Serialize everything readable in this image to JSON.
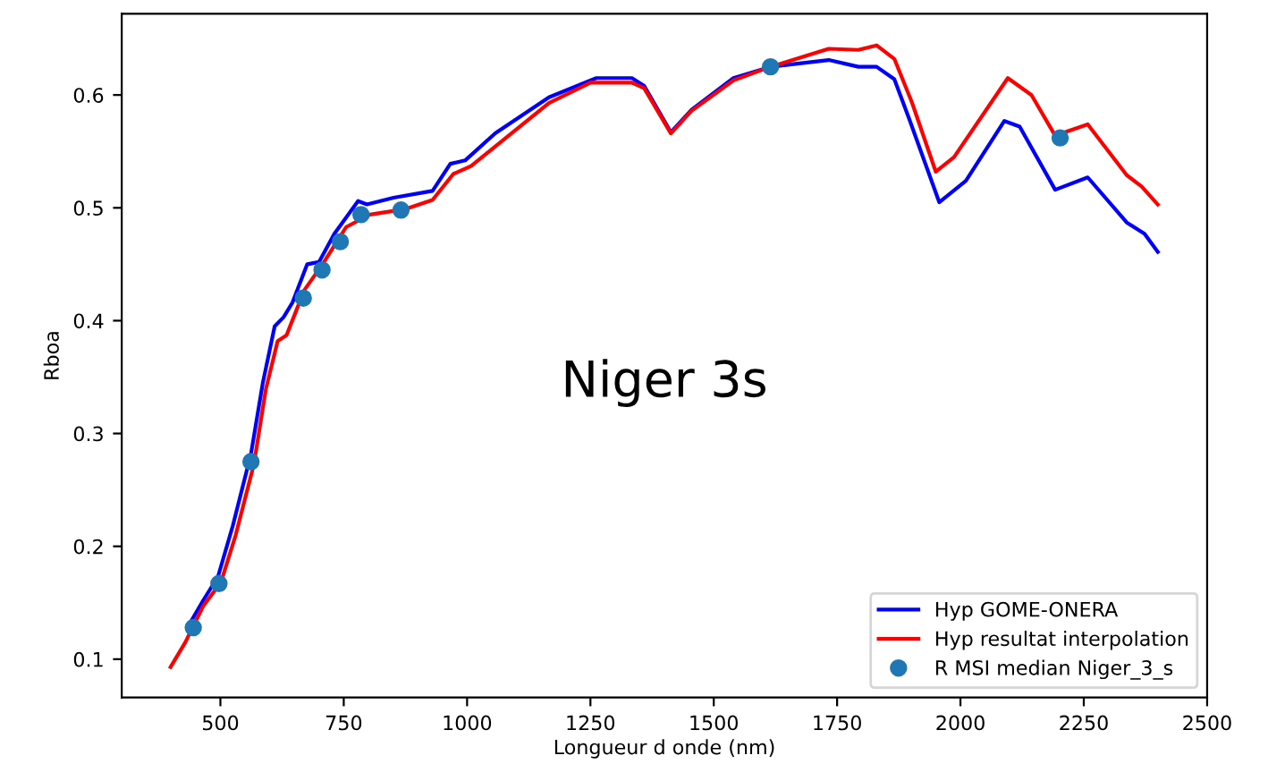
{
  "chart_data": {
    "type": "line",
    "xlabel": "Longueur d onde (nm)",
    "ylabel": "Rboa",
    "xlim": [
      300,
      2500
    ],
    "xticks": [
      500,
      750,
      1000,
      1250,
      1500,
      1750,
      2000,
      2250,
      2500
    ],
    "ylim": [
      0.066,
      0.672
    ],
    "yticks": [
      0.1,
      0.2,
      0.3,
      0.4,
      0.5,
      0.6
    ],
    "grid": false,
    "legend": "bottom right",
    "annotations": [
      "Niger 3s"
    ],
    "series": [
      {
        "name": "Hyp GOME-ONERA",
        "color": "#0000ff",
        "x": [
          441,
          465,
          495,
          525,
          562,
          586,
          610,
          628,
          646,
          676,
          700,
          731,
          779,
          797,
          851,
          930,
          966,
          996,
          1057,
          1166,
          1262,
          1334,
          1359,
          1413,
          1455,
          1540,
          1615,
          1733,
          1793,
          1830,
          1866,
          1896,
          1957,
          2011,
          2089,
          2120,
          2192,
          2258,
          2337,
          2373,
          2400
        ],
        "values": [
          0.134,
          0.152,
          0.173,
          0.218,
          0.282,
          0.345,
          0.395,
          0.403,
          0.416,
          0.45,
          0.452,
          0.477,
          0.506,
          0.503,
          0.509,
          0.515,
          0.539,
          0.542,
          0.566,
          0.598,
          0.615,
          0.615,
          0.608,
          0.567,
          0.587,
          0.615,
          0.625,
          0.631,
          0.625,
          0.625,
          0.614,
          0.579,
          0.505,
          0.524,
          0.577,
          0.572,
          0.516,
          0.527,
          0.487,
          0.477,
          0.461
        ]
      },
      {
        "name": "Hyp resultat interpolation",
        "color": "#ff0000",
        "x": [
          399,
          429,
          465,
          501,
          531,
          568,
          592,
          616,
          634,
          670,
          707,
          755,
          803,
          876,
          930,
          972,
          1008,
          1166,
          1250,
          1334,
          1359,
          1413,
          1455,
          1540,
          1615,
          1733,
          1793,
          1830,
          1866,
          1902,
          1950,
          1987,
          2096,
          2144,
          2192,
          2258,
          2337,
          2367,
          2400
        ],
        "values": [
          0.093,
          0.115,
          0.147,
          0.168,
          0.21,
          0.273,
          0.339,
          0.382,
          0.387,
          0.427,
          0.45,
          0.483,
          0.494,
          0.499,
          0.507,
          0.53,
          0.537,
          0.593,
          0.611,
          0.611,
          0.606,
          0.566,
          0.586,
          0.613,
          0.625,
          0.641,
          0.64,
          0.644,
          0.632,
          0.593,
          0.532,
          0.545,
          0.615,
          0.6,
          0.564,
          0.574,
          0.529,
          0.519,
          0.503
        ]
      },
      {
        "name": "R MSI median Niger_3_s",
        "color": "#1f77b4",
        "type": "scatter",
        "marker": "circle",
        "x": [
          445,
          497,
          562,
          668,
          706,
          743,
          785,
          866,
          1615,
          2202
        ],
        "values": [
          0.128,
          0.167,
          0.275,
          0.42,
          0.445,
          0.47,
          0.494,
          0.498,
          0.625,
          0.562
        ]
      }
    ]
  }
}
